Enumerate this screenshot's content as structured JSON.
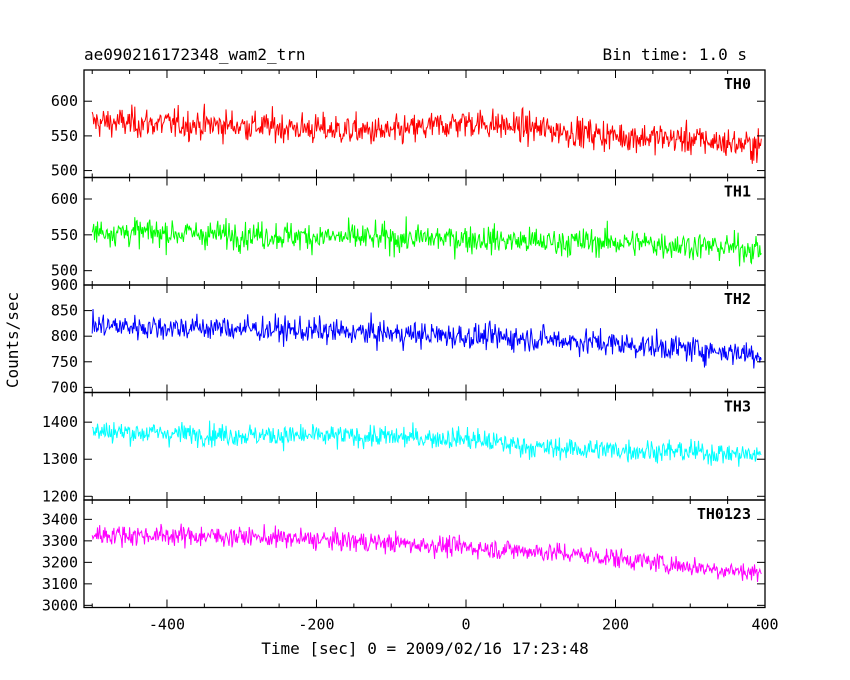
{
  "header": {
    "title": "ae090216172348_wam2_trn",
    "bin_time": "Bin time: 1.0 s"
  },
  "chart_data": {
    "type": "line",
    "title": "ae090216172348_wam2_trn",
    "xlabel": "Time [sec] 0 = 2009/02/16 17:23:48",
    "ylabel": "Counts/sec",
    "xlim": [
      -511,
      400
    ],
    "xticks": [
      -400,
      -200,
      0,
      200,
      400
    ],
    "grid": false,
    "legend": "none",
    "panels": [
      {
        "name": "TH0",
        "color": "#ff0000",
        "ylim": [
          490,
          645
        ],
        "yticks": [
          500,
          550,
          600
        ],
        "trend": [
          [
            -500,
            570
          ],
          [
            -300,
            565
          ],
          [
            -100,
            555
          ],
          [
            0,
            570
          ],
          [
            100,
            560
          ],
          [
            200,
            550
          ],
          [
            300,
            545
          ],
          [
            395,
            535
          ]
        ],
        "noise": 28
      },
      {
        "name": "TH1",
        "color": "#00ff00",
        "ylim": [
          480,
          630
        ],
        "yticks": [
          500,
          550,
          600
        ],
        "trend": [
          [
            -500,
            555
          ],
          [
            -300,
            550
          ],
          [
            -100,
            545
          ],
          [
            0,
            545
          ],
          [
            100,
            540
          ],
          [
            200,
            540
          ],
          [
            300,
            535
          ],
          [
            395,
            530
          ]
        ],
        "noise": 25
      },
      {
        "name": "TH2",
        "color": "#0000ff",
        "ylim": [
          690,
          900
        ],
        "yticks": [
          700,
          750,
          800,
          850,
          900
        ],
        "trend": [
          [
            -500,
            820
          ],
          [
            -300,
            815
          ],
          [
            -100,
            805
          ],
          [
            0,
            800
          ],
          [
            100,
            795
          ],
          [
            200,
            785
          ],
          [
            300,
            775
          ],
          [
            395,
            765
          ]
        ],
        "noise": 32
      },
      {
        "name": "TH3",
        "color": "#00ffff",
        "ylim": [
          1190,
          1480
        ],
        "yticks": [
          1200,
          1300,
          1400
        ],
        "trend": [
          [
            -500,
            1375
          ],
          [
            -300,
            1365
          ],
          [
            -100,
            1360
          ],
          [
            0,
            1355
          ],
          [
            100,
            1330
          ],
          [
            200,
            1325
          ],
          [
            300,
            1320
          ],
          [
            395,
            1310
          ]
        ],
        "noise": 38
      },
      {
        "name": "TH0123",
        "color": "#ff00ff",
        "ylim": [
          2990,
          3490
        ],
        "yticks": [
          3000,
          3100,
          3200,
          3300,
          3400
        ],
        "trend": [
          [
            -500,
            3330
          ],
          [
            -300,
            3320
          ],
          [
            -100,
            3290
          ],
          [
            0,
            3270
          ],
          [
            100,
            3250
          ],
          [
            200,
            3220
          ],
          [
            300,
            3180
          ],
          [
            395,
            3150
          ]
        ],
        "noise": 60
      }
    ]
  }
}
